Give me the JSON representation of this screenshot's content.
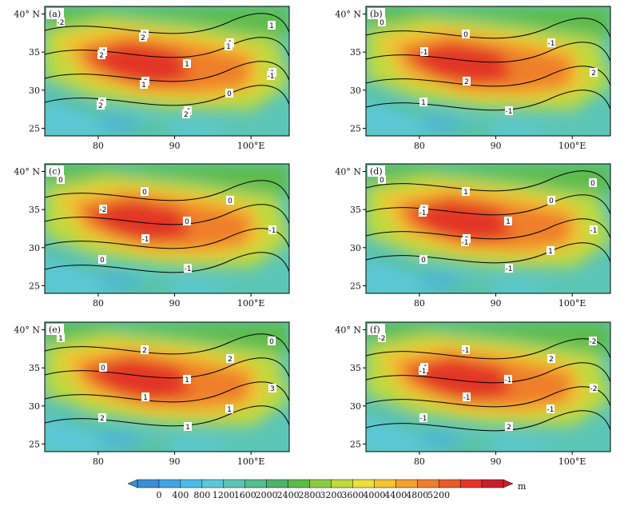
{
  "figure": {
    "panels": [
      {
        "label": "(a)",
        "contour_labels": [
          "-2",
          "-1",
          "0",
          "-1",
          "1",
          "1",
          "2",
          "2",
          "1",
          "0",
          "1",
          "2",
          "1",
          "2",
          "1",
          "-1",
          "2",
          "2"
        ]
      },
      {
        "label": "(b)",
        "contour_labels": [
          "0",
          "-1",
          "2",
          "-1",
          "-1",
          "2",
          "1",
          "0"
        ]
      },
      {
        "label": "(c)",
        "contour_labels": [
          "0",
          "-2",
          "-1",
          "-1",
          "0",
          "-1",
          "0",
          "0",
          "0"
        ]
      },
      {
        "label": "(d)",
        "contour_labels": [
          "0",
          "1",
          "0",
          "-1",
          "0",
          "-1",
          "0",
          "1",
          "1",
          "1",
          "0",
          "-1",
          "-1"
        ]
      },
      {
        "label": "(e)",
        "contour_labels": [
          "1",
          "0",
          "1",
          "1",
          "2",
          "3",
          "2",
          "2",
          "1",
          "1",
          "0"
        ]
      },
      {
        "label": "(f)",
        "contour_labels": [
          "-2",
          "-1",
          "-1",
          "2",
          "2",
          "-2",
          "-1",
          "-1",
          "-1",
          "-1",
          "-2",
          "-1"
        ]
      }
    ],
    "x_axis": {
      "ticks": [
        80,
        90,
        100
      ],
      "tick_labels": [
        "80",
        "90",
        "100°E"
      ],
      "range": [
        73,
        105
      ]
    },
    "y_axis": {
      "ticks": [
        25,
        30,
        35,
        40
      ],
      "tick_labels": [
        "25",
        "30",
        "35",
        "40° N"
      ],
      "range": [
        24,
        41
      ]
    },
    "colorbar": {
      "levels": [
        0,
        400,
        800,
        1200,
        1600,
        2000,
        2400,
        2800,
        3200,
        3600,
        4000,
        4400,
        4800,
        5200
      ],
      "tick_labels": [
        "0",
        "400",
        "800",
        "1200",
        "1600",
        "2000",
        "2400",
        "2800",
        "3200",
        "3600",
        "4000",
        "4400",
        "4800",
        "5200"
      ],
      "unit": "m",
      "colors": [
        "#3b8fd4",
        "#41a6e0",
        "#4cbde6",
        "#5bc8d8",
        "#5cc6b6",
        "#56bd8e",
        "#4fb36b",
        "#5dbb4a",
        "#8ccc42",
        "#c0d93c",
        "#ecdf3c",
        "#f6c332",
        "#f4a030",
        "#ef7f2c",
        "#ea5a2b",
        "#e23528",
        "#c91e2a"
      ]
    }
  }
}
